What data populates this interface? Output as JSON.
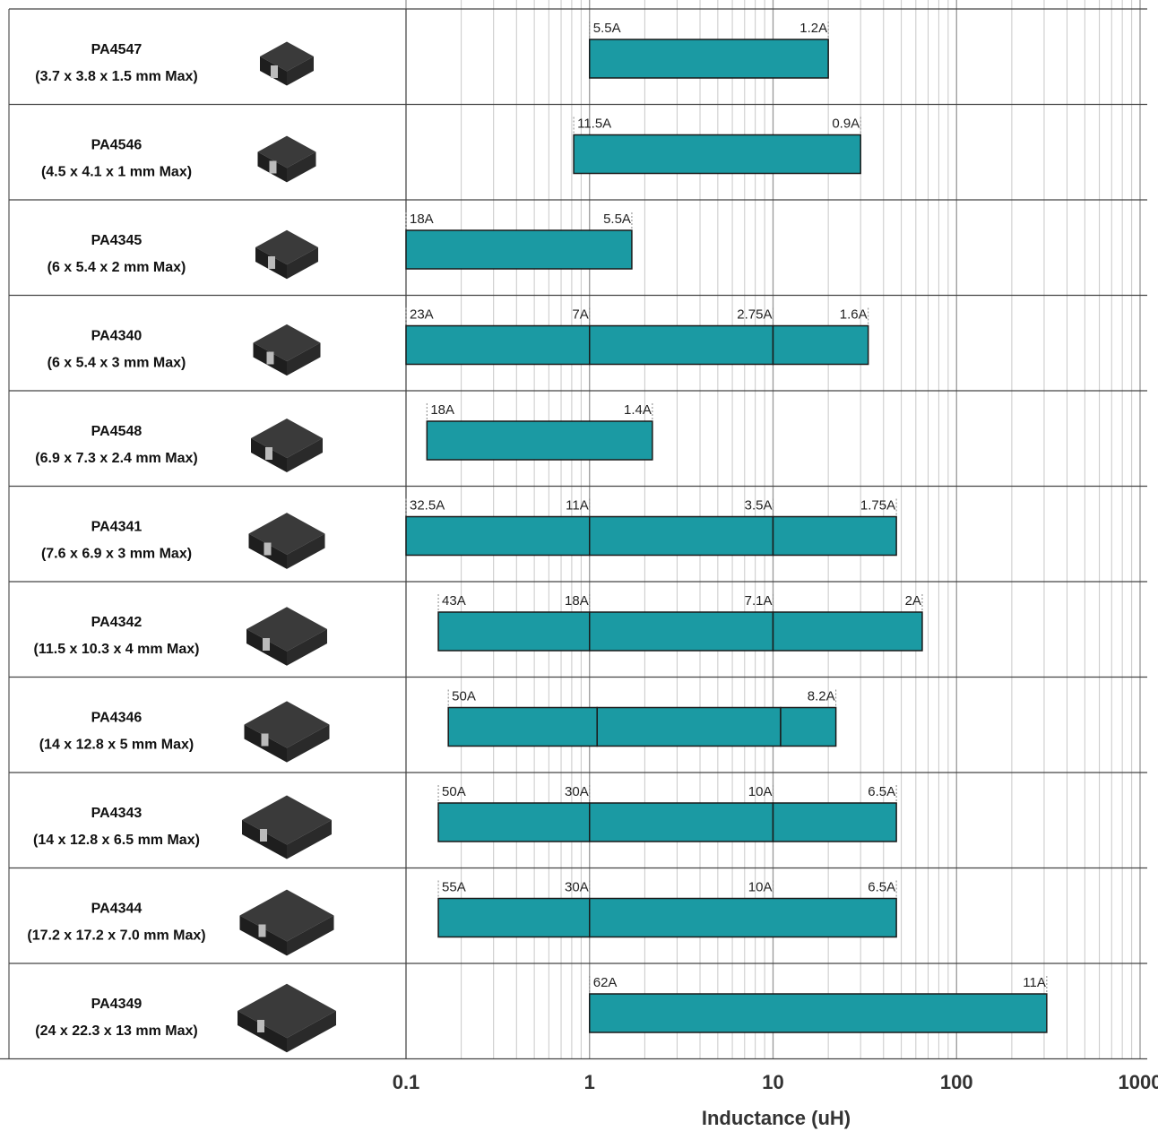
{
  "chart_data": {
    "type": "rangebar",
    "xlabel": "Inductance (uH)",
    "log_x": true,
    "xlim": [
      0.1,
      1000
    ],
    "xticks": [
      0.1,
      1,
      10,
      100,
      1000
    ],
    "color": "#1b9aa3",
    "grid": true,
    "rows": [
      {
        "name": "PA4547",
        "size": "(3.7 x 3.8 x 1.5 mm Max)",
        "start": 1,
        "end": 20,
        "dividers": [],
        "labels": [
          {
            "value": 1,
            "label": "5.5A"
          },
          {
            "value": 20,
            "label": "1.2A"
          }
        ]
      },
      {
        "name": "PA4546",
        "size": "(4.5 x 4.1 x 1 mm Max)",
        "start": 0.82,
        "end": 30,
        "dividers": [],
        "labels": [
          {
            "value": 0.82,
            "label": "11.5A"
          },
          {
            "value": 30,
            "label": "0.9A"
          }
        ]
      },
      {
        "name": "PA4345",
        "size": "(6 x 5.4 x 2 mm Max)",
        "start": 0.1,
        "end": 1.7,
        "dividers": [],
        "labels": [
          {
            "value": 0.1,
            "label": "18A"
          },
          {
            "value": 1.7,
            "label": "5.5A"
          }
        ]
      },
      {
        "name": "PA4340",
        "size": "(6 x 5.4 x 3 mm Max)",
        "start": 0.1,
        "end": 33,
        "dividers": [
          1,
          10
        ],
        "labels": [
          {
            "value": 0.1,
            "label": "23A"
          },
          {
            "value": 1,
            "label": "7A"
          },
          {
            "value": 10,
            "label": "2.75A"
          },
          {
            "value": 33,
            "label": "1.6A"
          }
        ]
      },
      {
        "name": "PA4548",
        "size": "(6.9 x 7.3 x 2.4 mm Max)",
        "start": 0.13,
        "end": 2.2,
        "dividers": [],
        "labels": [
          {
            "value": 0.13,
            "label": "18A"
          },
          {
            "value": 2.2,
            "label": "1.4A"
          }
        ]
      },
      {
        "name": "PA4341",
        "size": "(7.6 x 6.9 x 3 mm Max)",
        "start": 0.1,
        "end": 47,
        "dividers": [
          1,
          10
        ],
        "labels": [
          {
            "value": 0.1,
            "label": "32.5A"
          },
          {
            "value": 1,
            "label": "11A"
          },
          {
            "value": 10,
            "label": "3.5A"
          },
          {
            "value": 47,
            "label": "1.75A"
          }
        ]
      },
      {
        "name": "PA4342",
        "size": "(11.5 x 10.3 x 4 mm Max)",
        "start": 0.15,
        "end": 65,
        "dividers": [
          1,
          10
        ],
        "labels": [
          {
            "value": 0.15,
            "label": "43A"
          },
          {
            "value": 1,
            "label": "18A"
          },
          {
            "value": 10,
            "label": "7.1A"
          },
          {
            "value": 65,
            "label": "2A"
          }
        ]
      },
      {
        "name": "PA4346",
        "size": "(14 x 12.8 x 5 mm Max)",
        "start": 0.17,
        "end": 22,
        "dividers": [
          1.1,
          11
        ],
        "labels": [
          {
            "value": 0.17,
            "label": "50A"
          },
          {
            "value": 22,
            "label": "8.2A"
          }
        ]
      },
      {
        "name": "PA4343",
        "size": "(14 x 12.8 x 6.5 mm Max)",
        "start": 0.15,
        "end": 47,
        "dividers": [
          1,
          10
        ],
        "labels": [
          {
            "value": 0.15,
            "label": "50A"
          },
          {
            "value": 1,
            "label": "30A"
          },
          {
            "value": 10,
            "label": "10A"
          },
          {
            "value": 47,
            "label": "6.5A"
          }
        ]
      },
      {
        "name": "PA4344",
        "size": "(17.2 x 17.2 x 7.0 mm Max)",
        "start": 0.15,
        "end": 47,
        "dividers": [
          1
        ],
        "labels": [
          {
            "value": 0.15,
            "label": "55A"
          },
          {
            "value": 1,
            "label": "30A"
          },
          {
            "value": 10,
            "label": "10A"
          },
          {
            "value": 47,
            "label": "6.5A"
          }
        ]
      },
      {
        "name": "PA4349",
        "size": "(24 x 22.3 x 13 mm Max)",
        "start": 1,
        "end": 310,
        "dividers": [],
        "labels": [
          {
            "value": 1,
            "label": "62A"
          },
          {
            "value": 310,
            "label": "11A"
          }
        ]
      }
    ]
  }
}
